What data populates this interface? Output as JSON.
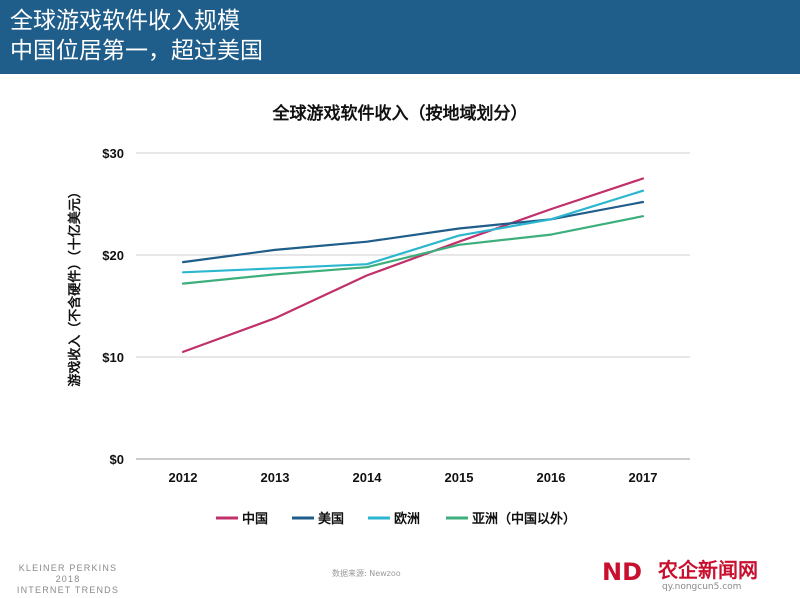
{
  "banner": {
    "line1": "全球游戏软件收入规模",
    "line2": "中国位居第一，超过美国"
  },
  "footer": {
    "org_line1": "KLEINER PERKINS",
    "org_line2": "2018",
    "org_line3": "INTERNET TRENDS",
    "source": "数据来源: Newzoo"
  },
  "watermark": {
    "logo": "ND",
    "brand": "农企新闻网",
    "url": "qy.nongcun5.com"
  },
  "colors": {
    "banner": "#1f5d8a",
    "china": "#c0306a",
    "usa": "#1f5d8a",
    "europe": "#2bb7cf",
    "asia_ex_china": "#3daf7c"
  },
  "chart_data": {
    "type": "line",
    "title": "全球游戏软件收入（按地域划分）",
    "xlabel": "",
    "ylabel": "游戏收入（不含硬件）（十亿美元）",
    "categories": [
      "2012",
      "2013",
      "2014",
      "2015",
      "2016",
      "2017"
    ],
    "ylim": [
      0,
      30
    ],
    "yticks": [
      {
        "value": 0,
        "label": "$0"
      },
      {
        "value": 10,
        "label": "$10"
      },
      {
        "value": 20,
        "label": "$20"
      },
      {
        "value": 30,
        "label": "$30"
      }
    ],
    "grid": true,
    "legend_position": "bottom",
    "series": [
      {
        "name": "中国",
        "color": "#c0306a",
        "values": [
          10.5,
          13.8,
          18.0,
          21.3,
          24.5,
          27.5
        ]
      },
      {
        "name": "美国",
        "color": "#1f5d8a",
        "values": [
          19.3,
          20.5,
          21.3,
          22.6,
          23.5,
          25.2
        ]
      },
      {
        "name": "欧洲",
        "color": "#2bb7cf",
        "values": [
          18.3,
          18.7,
          19.1,
          21.9,
          23.5,
          26.3
        ]
      },
      {
        "name": "亚洲（中国以外）",
        "color": "#3daf7c",
        "values": [
          17.2,
          18.1,
          18.8,
          21.0,
          22.0,
          23.8
        ]
      }
    ]
  }
}
